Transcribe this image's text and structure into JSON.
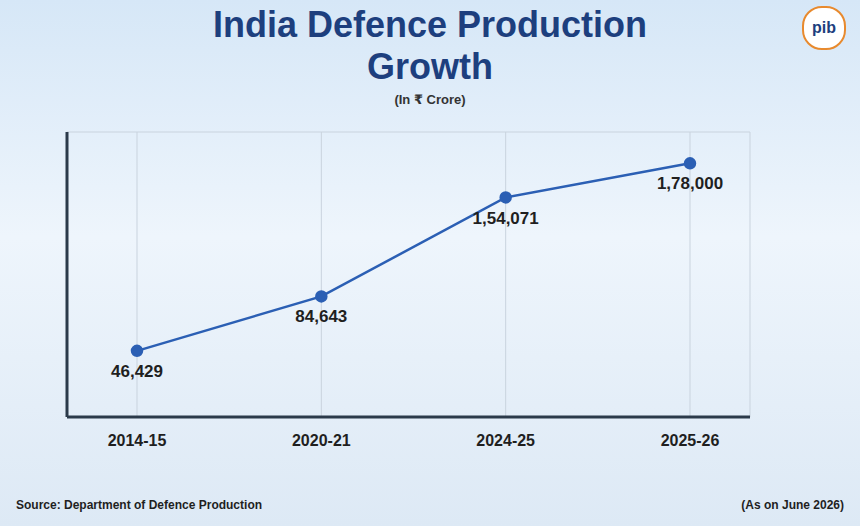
{
  "chart_data": {
    "type": "line",
    "title": "India Defence Production Growth",
    "subtitle": "(In ₹ Crore)",
    "categories": [
      "2014-15",
      "2020-21",
      "2024-25",
      "2025-26"
    ],
    "values": [
      46429,
      84643,
      154071,
      178000
    ],
    "value_labels": [
      "46,429",
      "84,643",
      "1,54,071",
      "1,78,000"
    ],
    "color": "#2b5fb4",
    "marker": "circle",
    "ylim": [
      0,
      200000
    ],
    "yticks": [
      0,
      25000,
      50000,
      75000,
      100000,
      125000,
      150000,
      175000,
      200000
    ],
    "grid": true,
    "data_labels": true,
    "tick_labels": "x",
    "source": "Source: Department of Defence Production",
    "note": "(As on June 2026)",
    "logo": "pib"
  }
}
